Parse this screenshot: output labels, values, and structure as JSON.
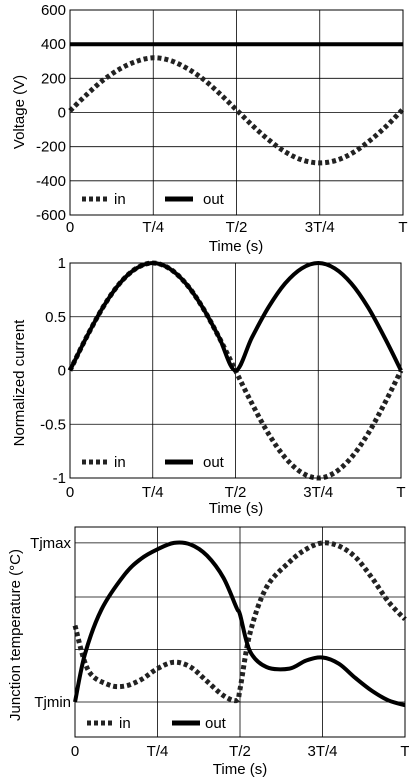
{
  "chart_data": [
    {
      "type": "line",
      "title": "",
      "xlabel": "Time (s)",
      "ylabel": "Voltage (V)",
      "x_ticks": [
        "0",
        "T/4",
        "T/2",
        "3T/4",
        "T"
      ],
      "y_ticks": [
        "600",
        "400",
        "200",
        "0",
        "-200",
        "-400",
        "-600"
      ],
      "xlim": [
        0,
        1
      ],
      "ylim": [
        -600,
        600
      ],
      "grid": true,
      "legend_position": "bottom-left",
      "x": [
        0,
        0.05,
        0.1,
        0.15,
        0.2,
        0.25,
        0.3,
        0.35,
        0.4,
        0.45,
        0.5,
        0.55,
        0.6,
        0.65,
        0.7,
        0.75,
        0.8,
        0.85,
        0.9,
        0.95,
        1
      ],
      "series": [
        {
          "name": "in",
          "style": "dotted",
          "color": "#222222",
          "values": [
            10,
            105,
            190,
            255,
            300,
            320,
            305,
            260,
            195,
            110,
            15,
            -80,
            -165,
            -235,
            -280,
            -295,
            -280,
            -235,
            -165,
            -80,
            20
          ]
        },
        {
          "name": "out",
          "style": "solid",
          "color": "#000000",
          "values": [
            400,
            400,
            400,
            400,
            400,
            400,
            400,
            400,
            400,
            400,
            400,
            400,
            400,
            400,
            400,
            400,
            400,
            400,
            400,
            400,
            400
          ]
        }
      ]
    },
    {
      "type": "line",
      "title": "",
      "xlabel": "Time (s)",
      "ylabel": "Normalized current",
      "x_ticks": [
        "0",
        "T/4",
        "T/2",
        "3T/4",
        "T"
      ],
      "y_ticks": [
        "1",
        "0.5",
        "0",
        "-0.5",
        "-1"
      ],
      "xlim": [
        0,
        1
      ],
      "ylim": [
        -1,
        1
      ],
      "grid": true,
      "legend_position": "bottom-left",
      "x": [
        0,
        0.05,
        0.1,
        0.15,
        0.2,
        0.25,
        0.3,
        0.35,
        0.4,
        0.45,
        0.5,
        0.55,
        0.6,
        0.65,
        0.7,
        0.75,
        0.8,
        0.85,
        0.9,
        0.95,
        1
      ],
      "series": [
        {
          "name": "in",
          "style": "dotted",
          "color": "#222222",
          "values": [
            0,
            0.31,
            0.59,
            0.81,
            0.95,
            1,
            0.95,
            0.81,
            0.59,
            0.31,
            0,
            -0.31,
            -0.59,
            -0.81,
            -0.95,
            -1,
            -0.95,
            -0.81,
            -0.59,
            -0.31,
            0
          ]
        },
        {
          "name": "out",
          "style": "solid",
          "color": "#000000",
          "values": [
            0,
            0.31,
            0.59,
            0.81,
            0.95,
            1,
            0.95,
            0.81,
            0.59,
            0.31,
            0,
            0.31,
            0.59,
            0.81,
            0.95,
            1,
            0.95,
            0.81,
            0.59,
            0.31,
            0
          ]
        }
      ]
    },
    {
      "type": "line",
      "title": "",
      "xlabel": "Time (s)",
      "ylabel": "Junction temperature (°C)",
      "x_ticks": [
        "0",
        "T/4",
        "T/2",
        "3T/4",
        "T"
      ],
      "y_ticks": [
        "Tjmax",
        "Tjmin"
      ],
      "y_tick_values": [
        1,
        0
      ],
      "xlim": [
        0,
        1
      ],
      "ylim": [
        -0.22,
        1.1
      ],
      "grid": true,
      "legend_position": "bottom-left",
      "series": [
        {
          "name": "in",
          "style": "dotted",
          "color": "#222222",
          "x": [
            0,
            0.04,
            0.1,
            0.15,
            0.2,
            0.25,
            0.3,
            0.35,
            0.4,
            0.45,
            0.49,
            0.5,
            0.53,
            0.58,
            0.65,
            0.7,
            0.75,
            0.8,
            0.85,
            0.9,
            0.95,
            1
          ],
          "values": [
            0.48,
            0.2,
            0.11,
            0.1,
            0.14,
            0.21,
            0.25,
            0.22,
            0.13,
            0.04,
            0.01,
            0.08,
            0.43,
            0.72,
            0.88,
            0.96,
            1.0,
            0.98,
            0.91,
            0.78,
            0.63,
            0.52
          ]
        },
        {
          "name": "out",
          "style": "solid",
          "color": "#000000",
          "x": [
            0,
            0.03,
            0.08,
            0.15,
            0.2,
            0.25,
            0.3,
            0.35,
            0.4,
            0.45,
            0.49,
            0.5,
            0.53,
            0.58,
            0.65,
            0.7,
            0.75,
            0.8,
            0.85,
            0.9,
            0.95,
            1
          ],
          "values": [
            0,
            0.3,
            0.58,
            0.8,
            0.9,
            0.96,
            1.0,
            0.99,
            0.92,
            0.78,
            0.59,
            0.55,
            0.32,
            0.22,
            0.21,
            0.26,
            0.28,
            0.24,
            0.15,
            0.07,
            0.01,
            -0.02
          ]
        }
      ]
    }
  ]
}
